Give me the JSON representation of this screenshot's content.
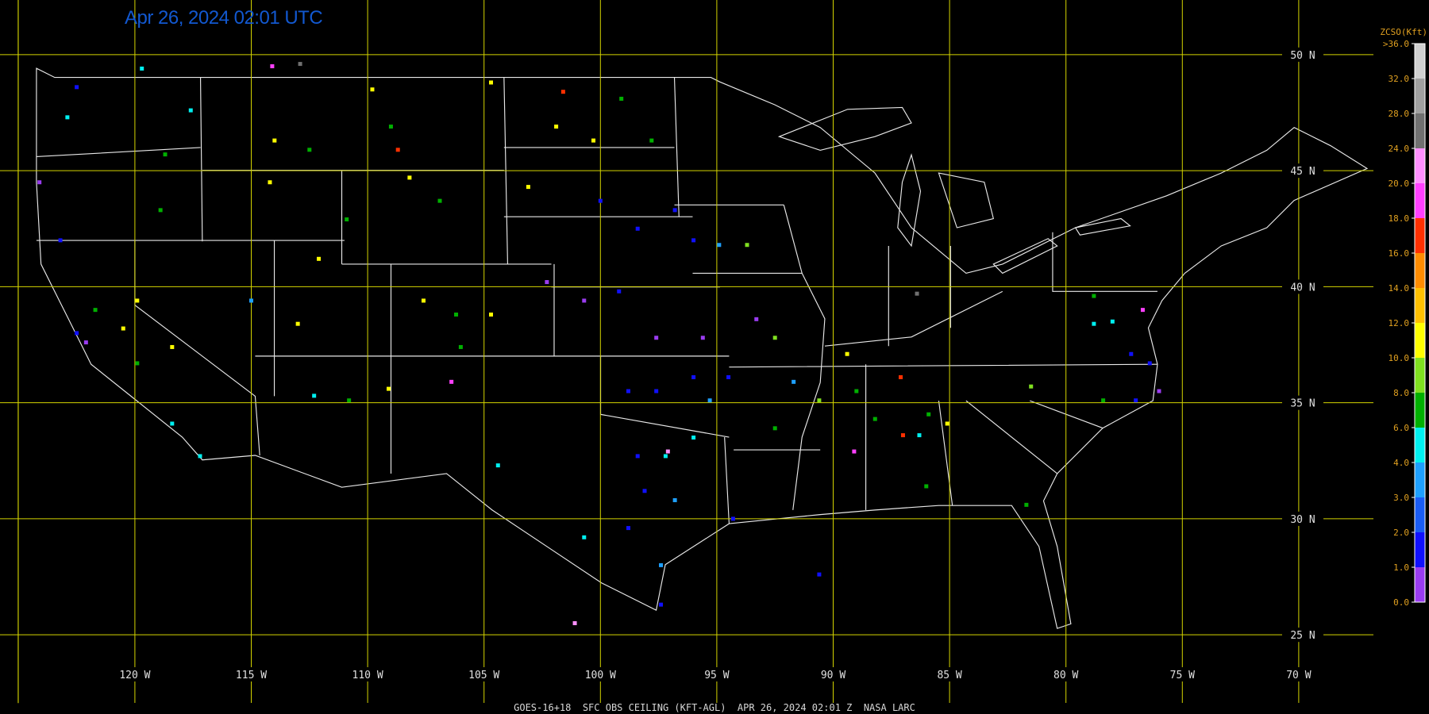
{
  "header": {
    "title": "Apr 26, 2024 02:01 UTC",
    "footer": "GOES-16+18  SFC OBS CEILING (KFT-AGL)  APR 26, 2024 02:01 Z  NASA LARC"
  },
  "latitudes": [
    {
      "value": 50,
      "label": "50 N"
    },
    {
      "value": 45,
      "label": "45 N"
    },
    {
      "value": 40,
      "label": "40 N"
    },
    {
      "value": 35,
      "label": "35 N"
    },
    {
      "value": 30,
      "label": "30 N"
    },
    {
      "value": 25,
      "label": "25 N"
    }
  ],
  "longitudes": [
    {
      "value": -120,
      "label": "120 W"
    },
    {
      "value": -115,
      "label": "115 W"
    },
    {
      "value": -110,
      "label": "110 W"
    },
    {
      "value": -105,
      "label": "105 W"
    },
    {
      "value": -100,
      "label": "100 W"
    },
    {
      "value": -95,
      "label": "95 W"
    },
    {
      "value": -90,
      "label": "90 W"
    },
    {
      "value": -85,
      "label": "85 W"
    },
    {
      "value": -80,
      "label": "80 W"
    },
    {
      "value": -75,
      "label": "75 W"
    },
    {
      "value": -70,
      "label": "70 W"
    }
  ],
  "colorbar": {
    "title": "ZCSO(Kft)",
    "ticks": [
      {
        "value": 0,
        "label": "0.0"
      },
      {
        "value": 1,
        "label": "1.0"
      },
      {
        "value": 2,
        "label": "2.0"
      },
      {
        "value": 3,
        "label": "3.0"
      },
      {
        "value": 4,
        "label": "4.0"
      },
      {
        "value": 6,
        "label": "6.0"
      },
      {
        "value": 8,
        "label": "8.0"
      },
      {
        "value": 10,
        "label": "10.0"
      },
      {
        "value": 12,
        "label": "12.0"
      },
      {
        "value": 14,
        "label": "14.0"
      },
      {
        "value": 16,
        "label": "16.0"
      },
      {
        "value": 18,
        "label": "18.0"
      },
      {
        "value": 20,
        "label": "20.0"
      },
      {
        "value": 24,
        "label": "24.0"
      },
      {
        "value": 28,
        "label": "28.0"
      },
      {
        "value": 32,
        "label": "32.0"
      },
      {
        "value": 36,
        "label": ">36.0"
      }
    ],
    "colors": [
      "#9a3cf0",
      "#1010ff",
      "#1a5cf5",
      "#1ea0ff",
      "#00f0f0",
      "#00b000",
      "#80e020",
      "#ffff00",
      "#ffc000",
      "#ff8c00",
      "#ff3000",
      "#ff40ff",
      "#ff90ff",
      "#707070",
      "#a0a0a0",
      "#d0d0d0"
    ]
  },
  "stations": [
    {
      "lon": -122.9,
      "lat": 47.3,
      "ceiling": 5
    },
    {
      "lon": -122.5,
      "lat": 48.6,
      "ceiling": 1.5
    },
    {
      "lon": -124.1,
      "lat": 44.5,
      "ceiling": 0.5
    },
    {
      "lon": -123.2,
      "lat": 42.0,
      "ceiling": 1.5
    },
    {
      "lon": -119.7,
      "lat": 49.4,
      "ceiling": 5
    },
    {
      "lon": -117.6,
      "lat": 47.6,
      "ceiling": 5
    },
    {
      "lon": -118.7,
      "lat": 45.7,
      "ceiling": 7
    },
    {
      "lon": -118.9,
      "lat": 43.3,
      "ceiling": 7
    },
    {
      "lon": -114.1,
      "lat": 49.5,
      "ceiling": 19
    },
    {
      "lon": -112.9,
      "lat": 49.6,
      "ceiling": 26
    },
    {
      "lon": -114.0,
      "lat": 46.3,
      "ceiling": 11
    },
    {
      "lon": -112.5,
      "lat": 45.9,
      "ceiling": 7
    },
    {
      "lon": -108.7,
      "lat": 45.9,
      "ceiling": 17
    },
    {
      "lon": -109.0,
      "lat": 46.9,
      "ceiling": 7
    },
    {
      "lon": -109.8,
      "lat": 48.5,
      "ceiling": 11
    },
    {
      "lon": -114.2,
      "lat": 44.5,
      "ceiling": 11
    },
    {
      "lon": -112.1,
      "lat": 41.2,
      "ceiling": 11
    },
    {
      "lon": -113.0,
      "lat": 38.4,
      "ceiling": 11
    },
    {
      "lon": -110.9,
      "lat": 42.9,
      "ceiling": 7
    },
    {
      "lon": -108.2,
      "lat": 44.7,
      "ceiling": 11
    },
    {
      "lon": -106.9,
      "lat": 43.7,
      "ceiling": 7
    },
    {
      "lon": -104.7,
      "lat": 48.8,
      "ceiling": 11
    },
    {
      "lon": -101.6,
      "lat": 48.4,
      "ceiling": 17
    },
    {
      "lon": -99.1,
      "lat": 48.1,
      "ceiling": 7
    },
    {
      "lon": -101.9,
      "lat": 46.9,
      "ceiling": 11
    },
    {
      "lon": -100.3,
      "lat": 46.3,
      "ceiling": 11
    },
    {
      "lon": -97.8,
      "lat": 46.3,
      "ceiling": 7
    },
    {
      "lon": -103.1,
      "lat": 44.3,
      "ceiling": 11
    },
    {
      "lon": -100.0,
      "lat": 43.7,
      "ceiling": 1.5
    },
    {
      "lon": -98.4,
      "lat": 42.5,
      "ceiling": 1.5
    },
    {
      "lon": -96.8,
      "lat": 43.3,
      "ceiling": 1.5
    },
    {
      "lon": -96.0,
      "lat": 42.0,
      "ceiling": 1.5
    },
    {
      "lon": -94.9,
      "lat": 41.8,
      "ceiling": 3.5
    },
    {
      "lon": -93.7,
      "lat": 41.8,
      "ceiling": 9
    },
    {
      "lon": -102.3,
      "lat": 40.2,
      "ceiling": 0.5
    },
    {
      "lon": -100.7,
      "lat": 39.4,
      "ceiling": 0.5
    },
    {
      "lon": -99.2,
      "lat": 39.8,
      "ceiling": 1.5
    },
    {
      "lon": -97.6,
      "lat": 37.8,
      "ceiling": 0.5
    },
    {
      "lon": -95.6,
      "lat": 37.8,
      "ceiling": 0.5
    },
    {
      "lon": -104.7,
      "lat": 38.8,
      "ceiling": 11
    },
    {
      "lon": -107.6,
      "lat": 39.4,
      "ceiling": 11
    },
    {
      "lon": -106.2,
      "lat": 38.8,
      "ceiling": 7
    },
    {
      "lon": -106.0,
      "lat": 37.4,
      "ceiling": 7
    },
    {
      "lon": -98.8,
      "lat": 35.5,
      "ceiling": 1.5
    },
    {
      "lon": -97.6,
      "lat": 35.5,
      "ceiling": 1.5
    },
    {
      "lon": -96.0,
      "lat": 36.1,
      "ceiling": 1.5
    },
    {
      "lon": -95.3,
      "lat": 35.1,
      "ceiling": 3.5
    },
    {
      "lon": -98.4,
      "lat": 32.7,
      "ceiling": 1.5
    },
    {
      "lon": -97.2,
      "lat": 32.7,
      "ceiling": 5
    },
    {
      "lon": -97.1,
      "lat": 32.9,
      "ceiling": 22
    },
    {
      "lon": -98.1,
      "lat": 31.2,
      "ceiling": 1.5
    },
    {
      "lon": -96.8,
      "lat": 30.8,
      "ceiling": 3.5
    },
    {
      "lon": -98.8,
      "lat": 29.6,
      "ceiling": 1.5
    },
    {
      "lon": -97.4,
      "lat": 28.0,
      "ceiling": 3.5
    },
    {
      "lon": -97.4,
      "lat": 26.3,
      "ceiling": 1.5
    },
    {
      "lon": -94.3,
      "lat": 30.0,
      "ceiling": 1.5
    },
    {
      "lon": -100.7,
      "lat": 29.2,
      "ceiling": 5
    },
    {
      "lon": -104.4,
      "lat": 32.3,
      "ceiling": 5
    },
    {
      "lon": -94.5,
      "lat": 36.1,
      "ceiling": 1.5
    },
    {
      "lon": -93.3,
      "lat": 38.6,
      "ceiling": 0.5
    },
    {
      "lon": -92.5,
      "lat": 37.8,
      "ceiling": 9
    },
    {
      "lon": -91.7,
      "lat": 35.9,
      "ceiling": 3.5
    },
    {
      "lon": -90.6,
      "lat": 35.1,
      "ceiling": 9
    },
    {
      "lon": -89.4,
      "lat": 37.1,
      "ceiling": 11
    },
    {
      "lon": -89.0,
      "lat": 35.5,
      "ceiling": 7
    },
    {
      "lon": -88.2,
      "lat": 34.3,
      "ceiling": 7
    },
    {
      "lon": -87.1,
      "lat": 36.1,
      "ceiling": 17
    },
    {
      "lon": -87.0,
      "lat": 33.6,
      "ceiling": 17
    },
    {
      "lon": -86.3,
      "lat": 33.6,
      "ceiling": 5
    },
    {
      "lon": -85.9,
      "lat": 34.5,
      "ceiling": 7
    },
    {
      "lon": -85.1,
      "lat": 34.1,
      "ceiling": 11
    },
    {
      "lon": -86.4,
      "lat": 39.7,
      "ceiling": 26
    },
    {
      "lon": -81.5,
      "lat": 35.7,
      "ceiling": 9
    },
    {
      "lon": -78.4,
      "lat": 35.1,
      "ceiling": 7
    },
    {
      "lon": -78.8,
      "lat": 38.4,
      "ceiling": 5
    },
    {
      "lon": -78.0,
      "lat": 38.5,
      "ceiling": 5
    },
    {
      "lon": -76.7,
      "lat": 39.0,
      "ceiling": 19
    },
    {
      "lon": -76.4,
      "lat": 36.7,
      "ceiling": 1.5
    },
    {
      "lon": -76.0,
      "lat": 35.5,
      "ceiling": 0.5
    },
    {
      "lon": -77.0,
      "lat": 35.1,
      "ceiling": 1.5
    },
    {
      "lon": -81.7,
      "lat": 30.6,
      "ceiling": 7
    },
    {
      "lon": -86.0,
      "lat": 31.4,
      "ceiling": 7
    },
    {
      "lon": -89.1,
      "lat": 32.9,
      "ceiling": 19
    },
    {
      "lon": -90.6,
      "lat": 27.6,
      "ceiling": 1.5
    },
    {
      "lon": -101.1,
      "lat": 25.5,
      "ceiling": 22
    },
    {
      "lon": -118.4,
      "lat": 34.1,
      "ceiling": 5
    },
    {
      "lon": -117.2,
      "lat": 32.7,
      "ceiling": 5
    },
    {
      "lon": -121.7,
      "lat": 39.0,
      "ceiling": 7
    },
    {
      "lon": -122.5,
      "lat": 38.0,
      "ceiling": 1.5
    },
    {
      "lon": -122.1,
      "lat": 37.6,
      "ceiling": 0.5
    },
    {
      "lon": -120.5,
      "lat": 38.2,
      "ceiling": 11
    },
    {
      "lon": -119.9,
      "lat": 39.4,
      "ceiling": 11
    },
    {
      "lon": -118.4,
      "lat": 37.4,
      "ceiling": 11
    },
    {
      "lon": -119.9,
      "lat": 36.7,
      "ceiling": 7
    },
    {
      "lon": -115.0,
      "lat": 39.4,
      "ceiling": 3.5
    },
    {
      "lon": -112.3,
      "lat": 35.3,
      "ceiling": 5
    },
    {
      "lon": -110.8,
      "lat": 35.1,
      "ceiling": 7
    },
    {
      "lon": -109.1,
      "lat": 35.6,
      "ceiling": 11
    },
    {
      "lon": -106.4,
      "lat": 35.9,
      "ceiling": 19
    },
    {
      "lon": -78.8,
      "lat": 39.6,
      "ceiling": 7
    },
    {
      "lon": -77.2,
      "lat": 37.1,
      "ceiling": 1.5
    },
    {
      "lon": -92.5,
      "lat": 33.9,
      "ceiling": 7
    },
    {
      "lon": -96.0,
      "lat": 33.5,
      "ceiling": 5
    }
  ]
}
